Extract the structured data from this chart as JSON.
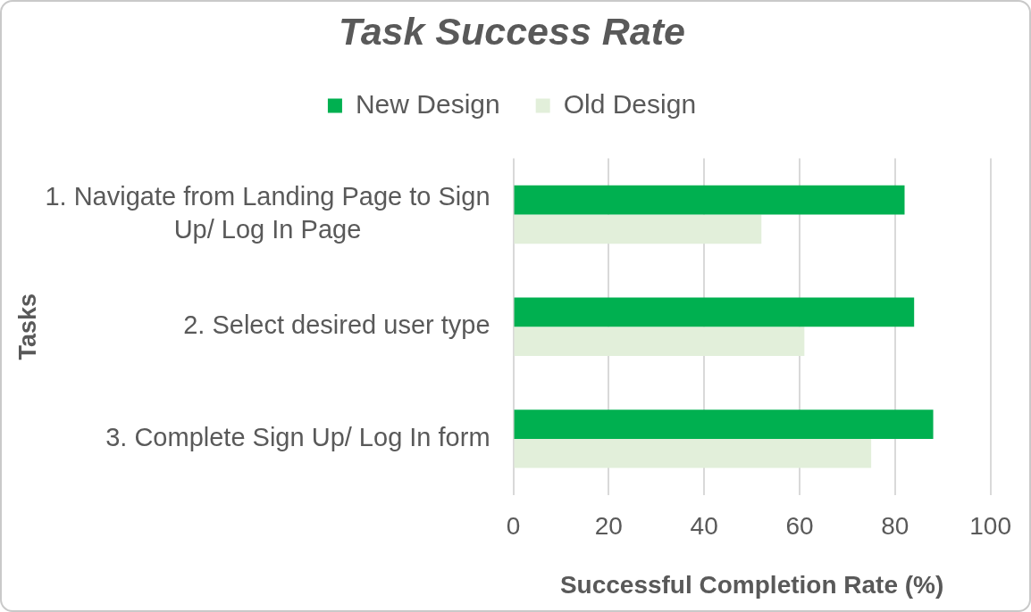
{
  "chart_data": {
    "type": "bar",
    "title": "Task Success Rate",
    "xlabel": "Successful Completion Rate (%)",
    "ylabel": "Tasks",
    "categories": [
      "1. Navigate from Landing Page to Sign Up/ Log In Page",
      "2. Select desired user type",
      "3. Complete Sign Up/ Log In form"
    ],
    "orientation": "horizontal",
    "series": [
      {
        "name": "New Design",
        "color": "#00b050",
        "values": [
          82,
          84,
          88
        ]
      },
      {
        "name": "Old Design",
        "color": "#e2efda",
        "values": [
          52,
          61,
          75
        ]
      }
    ],
    "xlim": [
      0,
      100
    ],
    "xticks": [
      0,
      20,
      40,
      60,
      80,
      100
    ],
    "grid": "x",
    "legend": "top"
  }
}
